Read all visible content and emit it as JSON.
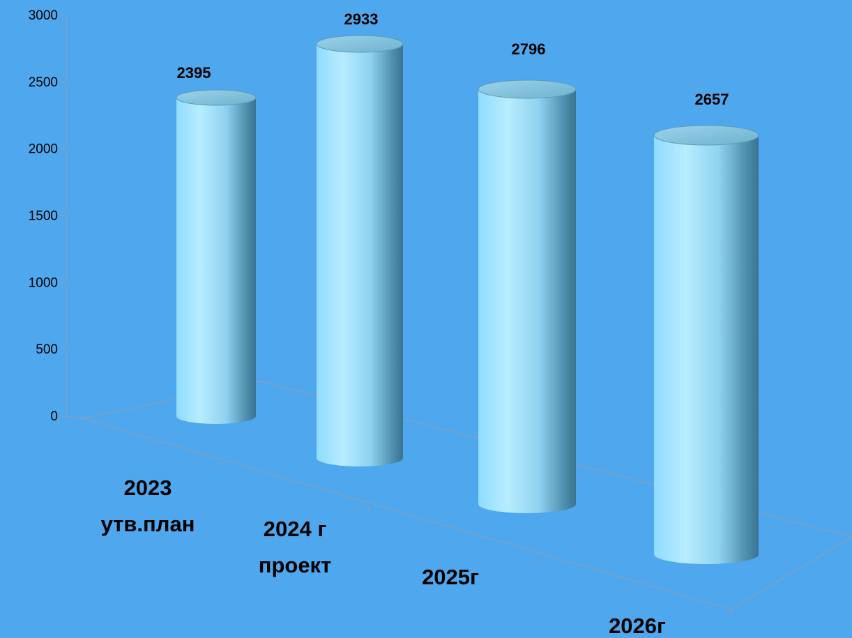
{
  "chart_data": {
    "type": "bar",
    "style": "3d-cylinder",
    "categories": [
      [
        "2023",
        "утв.план"
      ],
      [
        "2024 г",
        "проект"
      ],
      [
        "2025г"
      ],
      [
        "2026г"
      ]
    ],
    "values": [
      2395,
      2933,
      2796,
      2657
    ],
    "ylim": [
      0,
      3000
    ],
    "yticks": [
      0,
      500,
      1000,
      1500,
      2000,
      2500,
      3000
    ],
    "grid": false,
    "legend": "none",
    "colors": {
      "background": "#4fa7ee",
      "cylinder_light": "#b8ecff",
      "cylinder_mid": "#7fd1f2",
      "cylinder_dark": "#3f7f9c",
      "cylinder_top": "#7fc0dc"
    }
  }
}
